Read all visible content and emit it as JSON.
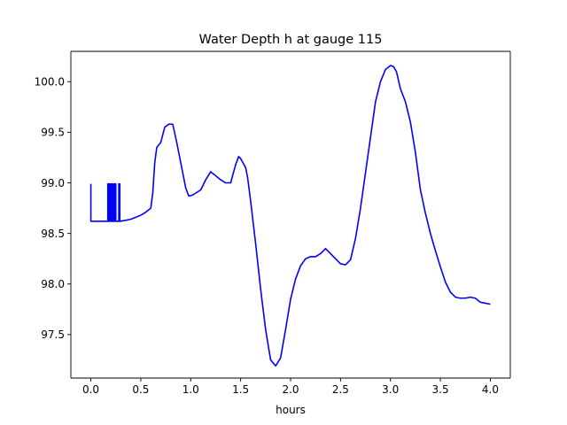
{
  "chart_data": {
    "type": "line",
    "title": "Water Depth h at gauge 115",
    "xlabel": "hours",
    "ylabel": "",
    "xlim": [
      -0.2,
      4.2
    ],
    "ylim": [
      97.07,
      100.3
    ],
    "xticks": [
      0.0,
      0.5,
      1.0,
      1.5,
      2.0,
      2.5,
      3.0,
      3.5,
      4.0
    ],
    "xtick_labels": [
      "0.0",
      "0.5",
      "1.0",
      "1.5",
      "2.0",
      "2.5",
      "3.0",
      "3.5",
      "4.0"
    ],
    "yticks": [
      97.5,
      98.0,
      98.5,
      99.0,
      99.5,
      100.0
    ],
    "ytick_labels": [
      "97.5",
      "98.0",
      "98.5",
      "99.0",
      "99.5",
      "100.0"
    ],
    "grid": false,
    "series": [
      {
        "color": "#0000ff",
        "x": [
          0.0,
          0.0,
          0.0,
          0.17,
          0.17,
          0.175,
          0.175,
          0.18,
          0.18,
          0.19,
          0.19,
          0.2,
          0.2,
          0.21,
          0.21,
          0.22,
          0.22,
          0.23,
          0.23,
          0.24,
          0.24,
          0.25,
          0.25,
          0.28,
          0.28,
          0.29,
          0.29,
          0.35,
          0.4,
          0.45,
          0.5,
          0.55,
          0.6,
          0.62,
          0.64,
          0.66,
          0.7,
          0.74,
          0.78,
          0.82,
          0.86,
          0.9,
          0.95,
          0.98,
          1.02,
          1.1,
          1.15,
          1.2,
          1.25,
          1.3,
          1.35,
          1.4,
          1.45,
          1.48,
          1.5,
          1.55,
          1.57,
          1.6,
          1.65,
          1.7,
          1.75,
          1.8,
          1.85,
          1.9,
          1.95,
          2.0,
          2.05,
          2.1,
          2.15,
          2.2,
          2.25,
          2.3,
          2.35,
          2.4,
          2.45,
          2.5,
          2.55,
          2.6,
          2.65,
          2.7,
          2.75,
          2.8,
          2.85,
          2.9,
          2.95,
          3.0,
          3.03,
          3.06,
          3.1,
          3.15,
          3.2,
          3.25,
          3.3,
          3.35,
          3.4,
          3.45,
          3.5,
          3.55,
          3.6,
          3.65,
          3.7,
          3.75,
          3.8,
          3.85,
          3.9,
          3.95,
          4.0
        ],
        "y": [
          98.99,
          98.62,
          98.62,
          98.62,
          98.99,
          98.99,
          98.62,
          98.62,
          98.99,
          98.99,
          98.62,
          98.62,
          98.99,
          98.99,
          98.62,
          98.62,
          98.99,
          98.99,
          98.62,
          98.62,
          98.99,
          98.99,
          98.62,
          98.62,
          98.99,
          98.99,
          98.62,
          98.63,
          98.64,
          98.66,
          98.68,
          98.71,
          98.75,
          98.9,
          99.2,
          99.35,
          99.4,
          99.55,
          99.58,
          99.58,
          99.4,
          99.2,
          98.95,
          98.87,
          98.88,
          98.93,
          99.03,
          99.11,
          99.07,
          99.03,
          99.0,
          99.0,
          99.18,
          99.26,
          99.24,
          99.15,
          99.05,
          98.82,
          98.4,
          97.95,
          97.55,
          97.25,
          97.19,
          97.27,
          97.55,
          97.85,
          98.05,
          98.18,
          98.25,
          98.27,
          98.27,
          98.3,
          98.35,
          98.3,
          98.25,
          98.2,
          98.19,
          98.24,
          98.45,
          98.75,
          99.1,
          99.45,
          99.8,
          100.0,
          100.12,
          100.16,
          100.15,
          100.1,
          99.93,
          99.8,
          99.6,
          99.3,
          98.93,
          98.7,
          98.5,
          98.33,
          98.17,
          98.02,
          97.92,
          97.87,
          97.86,
          97.86,
          97.87,
          97.86,
          97.82,
          97.81,
          97.8
        ]
      }
    ]
  }
}
